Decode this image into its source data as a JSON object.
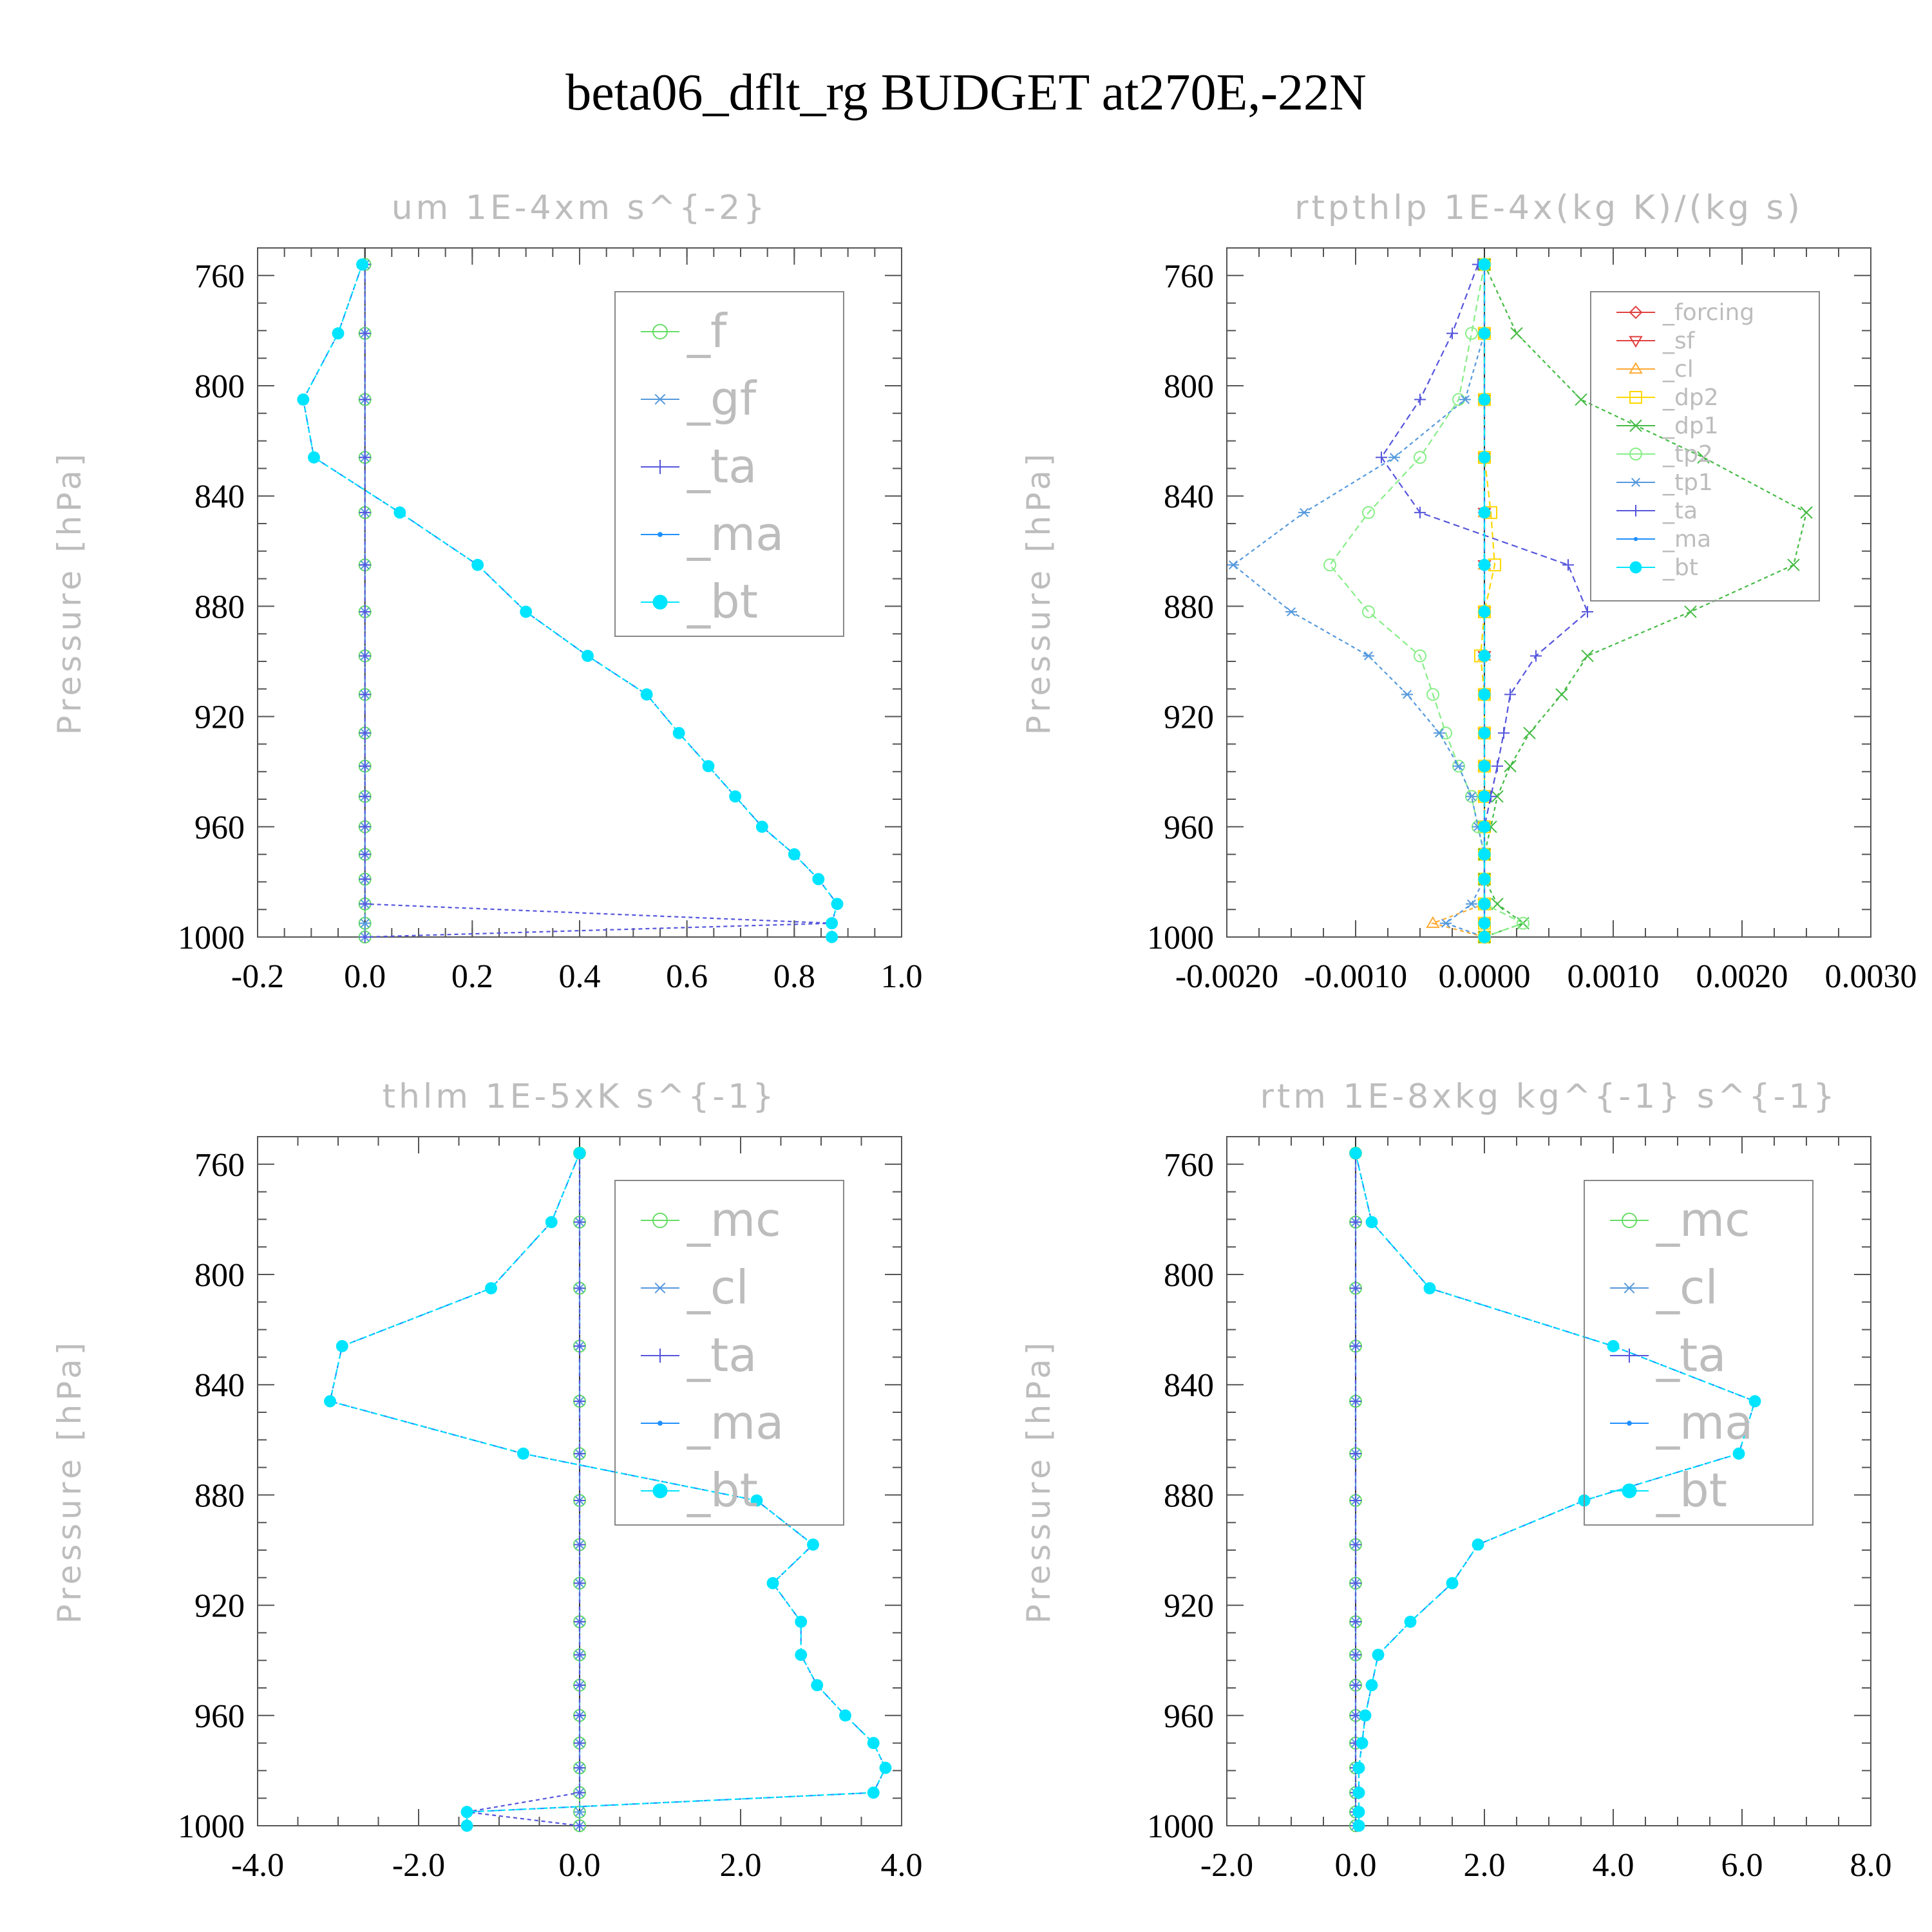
{
  "figure": {
    "title": "beta06_dflt_rg  BUDGET at270E,-22N"
  },
  "chart_data": [
    {
      "type": "line",
      "title": "um  1E-4xm s^{-2}",
      "ylabel": "Pressure [hPa]",
      "xlabel": "",
      "xlim": [
        -0.2,
        1.0
      ],
      "ylim": [
        1000,
        750
      ],
      "xticks": [
        "-0.2",
        "0.0",
        "0.2",
        "0.4",
        "0.6",
        "0.8",
        "1.0"
      ],
      "xtick_values": [
        -0.2,
        0.0,
        0.2,
        0.4,
        0.6,
        0.8,
        1.0
      ],
      "yticks": [
        "760",
        "800",
        "840",
        "880",
        "920",
        "960",
        "1000"
      ],
      "ytick_values": [
        760,
        800,
        840,
        880,
        920,
        960,
        1000
      ],
      "legend_position": "top-right",
      "legend_font": "large",
      "levels": [
        756,
        781,
        805,
        826,
        846,
        865,
        882,
        898,
        912,
        926,
        938,
        949,
        960,
        970,
        979,
        988,
        995,
        1000
      ],
      "series": [
        {
          "name": "_f",
          "color": "#66dd66",
          "marker": "circle",
          "values": [
            0,
            0,
            0,
            0,
            0,
            0,
            0,
            0,
            0,
            0,
            0,
            0,
            0,
            0,
            0,
            0,
            0,
            0
          ]
        },
        {
          "name": "_gf",
          "color": "#5599dd",
          "marker": "asterisk",
          "values": [
            0,
            0,
            0,
            0,
            0,
            0,
            0,
            0,
            0,
            0,
            0,
            0,
            0,
            0,
            0,
            0,
            0,
            0
          ]
        },
        {
          "name": "_ta",
          "color": "#5555dd",
          "marker": "plus",
          "values": [
            0,
            0,
            0,
            0,
            0,
            0,
            0,
            0,
            0,
            0,
            0,
            0,
            0,
            0,
            0,
            0,
            0.87,
            0
          ]
        },
        {
          "name": "_ma",
          "color": "#1e90ff",
          "marker": "dot",
          "values": [
            -0.005,
            -0.05,
            -0.115,
            -0.095,
            0.065,
            0.21,
            0.3,
            0.415,
            0.525,
            0.585,
            0.64,
            0.69,
            0.74,
            0.8,
            0.845,
            0.88,
            0.87,
            0.87
          ]
        },
        {
          "name": "_bt",
          "color": "#00e5ff",
          "marker": "filled-circle",
          "values": [
            -0.005,
            -0.05,
            -0.115,
            -0.095,
            0.065,
            0.21,
            0.3,
            0.415,
            0.525,
            0.585,
            0.64,
            0.69,
            0.74,
            0.8,
            0.845,
            0.88,
            0.87,
            0.87
          ]
        }
      ]
    },
    {
      "type": "line",
      "title": "rtpthlp  1E-4x(kg K)/(kg s)",
      "ylabel": "Pressure [hPa]",
      "xlabel": "",
      "xlim": [
        -0.002,
        0.003
      ],
      "ylim": [
        1000,
        750
      ],
      "xticks": [
        "-0.0020",
        "-0.0010",
        "0.0000",
        "0.0010",
        "0.0020",
        "0.0030"
      ],
      "xtick_values": [
        -0.002,
        -0.001,
        0.0,
        0.001,
        0.002,
        0.003
      ],
      "yticks": [
        "760",
        "800",
        "840",
        "880",
        "920",
        "960",
        "1000"
      ],
      "ytick_values": [
        760,
        800,
        840,
        880,
        920,
        960,
        1000
      ],
      "legend_position": "top-right",
      "legend_font": "small",
      "levels": [
        756,
        781,
        805,
        826,
        846,
        865,
        882,
        898,
        912,
        926,
        938,
        949,
        960,
        970,
        979,
        988,
        995,
        1000
      ],
      "series": [
        {
          "name": "_forcing",
          "color": "#e04040",
          "marker": "diamond",
          "values": [
            0,
            0,
            0,
            0,
            0,
            0,
            0,
            0,
            0,
            0,
            0,
            0,
            0,
            0,
            0,
            0,
            0,
            0
          ]
        },
        {
          "name": "_sf",
          "color": "#e04040",
          "marker": "triangle-down",
          "values": [
            0,
            0,
            0,
            0,
            0,
            0,
            0,
            0,
            0,
            0,
            0,
            0,
            0,
            0,
            0,
            0,
            0,
            0
          ]
        },
        {
          "name": "_cl",
          "color": "#ffaa33",
          "marker": "triangle-up",
          "values": [
            0,
            0,
            0,
            0,
            0,
            0,
            0,
            0,
            0,
            0,
            0,
            0,
            0,
            0,
            0,
            0,
            -0.0004,
            0
          ]
        },
        {
          "name": "_dp2",
          "color": "#ffd700",
          "marker": "square",
          "values": [
            0,
            0,
            0,
            0,
            5e-05,
            8e-05,
            0,
            -3e-05,
            0,
            0,
            0,
            0,
            0,
            0,
            0,
            0,
            0,
            0
          ]
        },
        {
          "name": "_dp1",
          "color": "#44bb44",
          "marker": "cross",
          "values": [
            0,
            0.00025,
            0.00075,
            0.0017,
            0.0025,
            0.0024,
            0.0016,
            0.0008,
            0.0006,
            0.00035,
            0.0002,
            0.0001,
            5e-05,
            0,
            0,
            0.0001,
            0.0003,
            0
          ]
        },
        {
          "name": "_tp2",
          "color": "#88ee88",
          "marker": "circle",
          "values": [
            0,
            -0.0001,
            -0.0002,
            -0.0005,
            -0.0009,
            -0.0012,
            -0.0009,
            -0.0005,
            -0.0004,
            -0.0003,
            -0.0002,
            -0.0001,
            -5e-05,
            0,
            0,
            0,
            0.0003,
            0
          ]
        },
        {
          "name": "_tp1",
          "color": "#5599dd",
          "marker": "asterisk",
          "values": [
            0,
            0,
            -0.00015,
            -0.0007,
            -0.0014,
            -0.00195,
            -0.0015,
            -0.0009,
            -0.0006,
            -0.00035,
            -0.0002,
            -0.0001,
            -5e-05,
            0,
            0,
            -0.0001,
            -0.0003,
            0
          ]
        },
        {
          "name": "_ta",
          "color": "#5555dd",
          "marker": "plus",
          "values": [
            -5e-05,
            -0.00025,
            -0.0005,
            -0.0008,
            -0.0005,
            0.00065,
            0.0008,
            0.0004,
            0.0002,
            0.00015,
            0.0001,
            5e-05,
            0,
            0,
            0,
            0,
            0,
            0
          ]
        },
        {
          "name": "_ma",
          "color": "#1e90ff",
          "marker": "dot",
          "values": [
            0,
            0,
            0,
            0,
            0,
            0,
            0,
            0,
            0,
            0,
            0,
            0,
            0,
            0,
            0,
            0,
            0,
            0
          ]
        },
        {
          "name": "_bt",
          "color": "#00e5ff",
          "marker": "filled-circle",
          "values": [
            0,
            0,
            0,
            0,
            0,
            0,
            0,
            0,
            0,
            0,
            0,
            0,
            0,
            0,
            0,
            0,
            0,
            0
          ]
        }
      ]
    },
    {
      "type": "line",
      "title": "thlm  1E-5xK s^{-1}",
      "ylabel": "Pressure [hPa]",
      "xlabel": "",
      "xlim": [
        -4.0,
        4.0
      ],
      "ylim": [
        1000,
        750
      ],
      "xticks": [
        "-4.0",
        "-2.0",
        "0.0",
        "2.0",
        "4.0"
      ],
      "xtick_values": [
        -4.0,
        -2.0,
        0.0,
        2.0,
        4.0
      ],
      "yticks": [
        "760",
        "800",
        "840",
        "880",
        "920",
        "960",
        "1000"
      ],
      "ytick_values": [
        760,
        800,
        840,
        880,
        920,
        960,
        1000
      ],
      "legend_position": "top-right",
      "legend_font": "large",
      "levels": [
        756,
        781,
        805,
        826,
        846,
        865,
        882,
        898,
        912,
        926,
        938,
        949,
        960,
        970,
        979,
        988,
        995,
        1000
      ],
      "series": [
        {
          "name": "_mc",
          "color": "#66dd66",
          "marker": "circle",
          "values": [
            0,
            0,
            0,
            0,
            0,
            0,
            0,
            0,
            0,
            0,
            0,
            0,
            0,
            0,
            0,
            0,
            0,
            0
          ]
        },
        {
          "name": "_cl",
          "color": "#5599dd",
          "marker": "asterisk",
          "values": [
            0,
            0,
            0,
            0,
            0,
            0,
            0,
            0,
            0,
            0,
            0,
            0,
            0,
            0,
            0,
            0,
            0,
            0
          ]
        },
        {
          "name": "_ta",
          "color": "#5555dd",
          "marker": "plus",
          "values": [
            0,
            0,
            0,
            0,
            0,
            0,
            0,
            0,
            0,
            0,
            0,
            0,
            0,
            0,
            0,
            0,
            -1.4,
            0
          ]
        },
        {
          "name": "_ma",
          "color": "#1e90ff",
          "marker": "dot",
          "values": [
            0.0,
            -0.35,
            -1.1,
            -2.95,
            -3.1,
            -0.7,
            2.2,
            2.9,
            2.4,
            2.75,
            2.75,
            2.95,
            3.3,
            3.65,
            3.8,
            3.65,
            -1.4,
            -1.4
          ]
        },
        {
          "name": "_bt",
          "color": "#00e5ff",
          "marker": "filled-circle",
          "values": [
            0.0,
            -0.35,
            -1.1,
            -2.95,
            -3.1,
            -0.7,
            2.2,
            2.9,
            2.4,
            2.75,
            2.75,
            2.95,
            3.3,
            3.65,
            3.8,
            3.65,
            -1.4,
            -1.4
          ]
        }
      ]
    },
    {
      "type": "line",
      "title": "rtm  1E-8xkg kg^{-1} s^{-1}",
      "ylabel": "Pressure [hPa]",
      "xlabel": "",
      "xlim": [
        -2.0,
        8.0
      ],
      "ylim": [
        1000,
        750
      ],
      "xticks": [
        "-2.0",
        "0.0",
        "2.0",
        "4.0",
        "6.0",
        "8.0"
      ],
      "xtick_values": [
        -2.0,
        0.0,
        2.0,
        4.0,
        6.0,
        8.0
      ],
      "yticks": [
        "760",
        "800",
        "840",
        "880",
        "920",
        "960",
        "1000"
      ],
      "ytick_values": [
        760,
        800,
        840,
        880,
        920,
        960,
        1000
      ],
      "legend_position": "top-right",
      "legend_font": "large",
      "levels": [
        756,
        781,
        805,
        826,
        846,
        865,
        882,
        898,
        912,
        926,
        938,
        949,
        960,
        970,
        979,
        988,
        995,
        1000
      ],
      "series": [
        {
          "name": "_mc",
          "color": "#66dd66",
          "marker": "circle",
          "values": [
            0,
            0,
            0,
            0,
            0,
            0,
            0,
            0,
            0,
            0,
            0,
            0,
            0,
            0,
            0,
            0,
            0,
            0
          ]
        },
        {
          "name": "_cl",
          "color": "#5599dd",
          "marker": "asterisk",
          "values": [
            0,
            0,
            0,
            0,
            0,
            0,
            0,
            0,
            0,
            0,
            0,
            0,
            0,
            0,
            0,
            0,
            0,
            0
          ]
        },
        {
          "name": "_ta",
          "color": "#5555dd",
          "marker": "plus",
          "values": [
            0,
            0,
            0,
            0,
            0,
            0,
            0,
            0,
            0,
            0,
            0,
            0,
            0,
            0,
            0,
            0,
            0,
            0
          ]
        },
        {
          "name": "_ma",
          "color": "#1e90ff",
          "marker": "dot",
          "values": [
            0.0,
            0.25,
            1.15,
            4.0,
            6.2,
            5.95,
            3.55,
            1.9,
            1.5,
            0.85,
            0.35,
            0.25,
            0.15,
            0.1,
            0.05,
            0.05,
            0.05,
            0.05
          ]
        },
        {
          "name": "_bt",
          "color": "#00e5ff",
          "marker": "filled-circle",
          "values": [
            0.0,
            0.25,
            1.15,
            4.0,
            6.2,
            5.95,
            3.55,
            1.9,
            1.5,
            0.85,
            0.35,
            0.25,
            0.15,
            0.1,
            0.05,
            0.05,
            0.05,
            0.05
          ]
        }
      ]
    }
  ]
}
